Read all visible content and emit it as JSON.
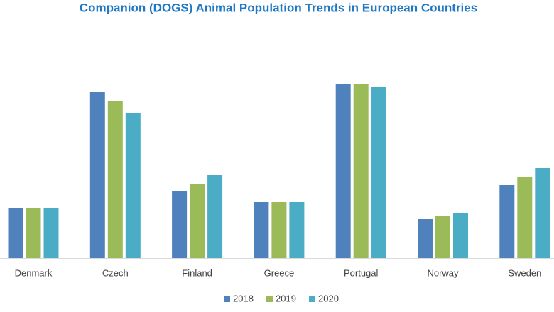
{
  "chart_data": {
    "type": "bar",
    "title": "Companion (DOGS) Animal Population Trends in European Countries",
    "categories": [
      "Denmark",
      "Czech",
      "Finland",
      "Greece",
      "Portugal",
      "Norway",
      "Sweden"
    ],
    "series": [
      {
        "name": "2018",
        "color": "#4f81bd",
        "values": [
          70,
          234,
          95,
          79,
          245,
          55,
          103
        ]
      },
      {
        "name": "2019",
        "color": "#9bbb59",
        "values": [
          70,
          221,
          104,
          79,
          245,
          59,
          114
        ]
      },
      {
        "name": "2020",
        "color": "#4bacc6",
        "values": [
          70,
          205,
          117,
          79,
          242,
          64,
          127
        ]
      }
    ]
  }
}
